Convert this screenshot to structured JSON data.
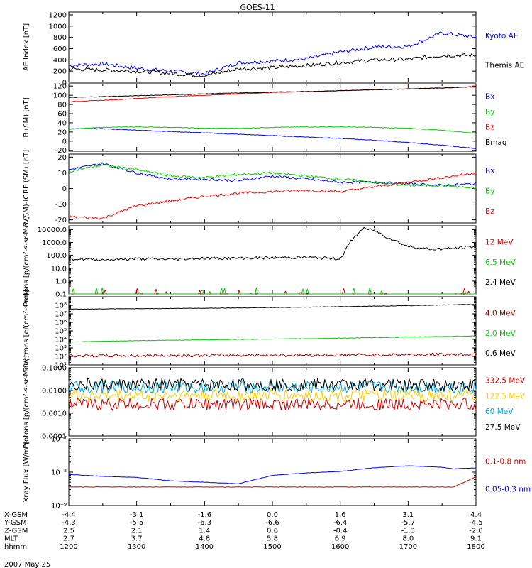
{
  "title": "GOES-11",
  "date_label": "2007 May 25",
  "ephemeris": {
    "rows": [
      {
        "label": "X-GSM",
        "values": [
          "-4.4",
          "-3.1",
          "-1.6",
          "0.0",
          "1.6",
          "3.1",
          "4.4"
        ]
      },
      {
        "label": "Y-GSM",
        "values": [
          "-4.3",
          "-5.5",
          "-6.3",
          "-6.6",
          "-6.4",
          "-5.7",
          "-4.5"
        ]
      },
      {
        "label": "Z-GSM",
        "values": [
          "2.5",
          "2.1",
          "1.4",
          "0.6",
          "-0.4",
          "-1.3",
          "-2.0"
        ]
      },
      {
        "label": "MLT",
        "values": [
          "2.7",
          "3.7",
          "4.8",
          "5.8",
          "6.9",
          "8.0",
          "9.1"
        ]
      },
      {
        "label": "hhmm",
        "values": [
          "1200",
          "1300",
          "1400",
          "1500",
          "1600",
          "1700",
          "1800"
        ]
      }
    ]
  },
  "chart_data": [
    {
      "type": "line",
      "ylabel": "AE Index [nT]",
      "ylim": [
        0,
        1250
      ],
      "scale": "linear",
      "yticks": [
        0,
        200,
        400,
        600,
        800,
        1000,
        1200
      ],
      "x": [
        1200,
        1230,
        1300,
        1330,
        1400,
        1430,
        1500,
        1530,
        1600,
        1630,
        1700,
        1730,
        1800
      ],
      "series": [
        {
          "name": "Kyoto AE",
          "color": "#0000ff",
          "values": [
            300,
            330,
            250,
            200,
            150,
            350,
            380,
            420,
            540,
            630,
            640,
            880,
            800
          ]
        },
        {
          "name": "Themis AE",
          "color": "#000000",
          "values": [
            240,
            220,
            200,
            160,
            120,
            240,
            260,
            300,
            350,
            400,
            410,
            480,
            480
          ]
        }
      ]
    },
    {
      "type": "line",
      "ylabel": "B (SM) [nT]",
      "ylim": [
        -22,
        125
      ],
      "scale": "linear",
      "yticks": [
        -20,
        0,
        20,
        40,
        60,
        80,
        100,
        120
      ],
      "x": [
        1200,
        1230,
        1300,
        1330,
        1400,
        1430,
        1500,
        1530,
        1600,
        1630,
        1700,
        1730,
        1800
      ],
      "series": [
        {
          "name": "Bx",
          "color": "#0000ff",
          "values": [
            27,
            27,
            24,
            21,
            18,
            15,
            12,
            9,
            6,
            2,
            -3,
            -9,
            -16
          ]
        },
        {
          "name": "By",
          "color": "#00cc00",
          "values": [
            26,
            30,
            31,
            30,
            28,
            28,
            30,
            31,
            31,
            30,
            28,
            24,
            17
          ]
        },
        {
          "name": "Bz",
          "color": "#ff0000",
          "values": [
            86,
            89,
            93,
            97,
            100,
            103,
            106,
            108,
            110,
            112,
            114,
            116,
            118
          ]
        },
        {
          "name": "Bmag",
          "color": "#000000",
          "values": [
            95,
            97,
            99,
            101,
            103,
            105,
            107,
            108,
            110,
            112,
            114,
            116,
            119
          ]
        }
      ]
    },
    {
      "type": "line",
      "ylabel": "B (SM)-IGRF (SM) [nT]",
      "ylim": [
        -22,
        22
      ],
      "scale": "linear",
      "yticks": [
        -20,
        -10,
        0,
        10,
        20
      ],
      "x": [
        1200,
        1230,
        1300,
        1330,
        1400,
        1430,
        1500,
        1530,
        1600,
        1630,
        1700,
        1730,
        1800
      ],
      "series": [
        {
          "name": "Bx",
          "color": "#0000ff",
          "values": [
            12,
            16,
            10,
            6,
            6,
            5,
            8,
            6,
            4,
            4,
            3,
            2,
            3
          ]
        },
        {
          "name": "By",
          "color": "#00cc00",
          "values": [
            11,
            15,
            12,
            8,
            7,
            9,
            10,
            8,
            6,
            4,
            2,
            2,
            0
          ]
        },
        {
          "name": "Bz",
          "color": "#ff0000",
          "values": [
            -18,
            -19,
            -11,
            -8,
            -5,
            -3,
            -2,
            -1,
            -2,
            1,
            4,
            7,
            10
          ]
        }
      ]
    },
    {
      "type": "line",
      "ylabel": "Protons [p/(cm²-s-sr-MeV)]",
      "ylim": [
        0.1,
        20000
      ],
      "scale": "log",
      "yticks": [
        0.1,
        1,
        10,
        100,
        1000,
        10000
      ],
      "ytick_labels": [
        "0.1",
        "1.0",
        "10.0",
        "100.0",
        "1000.0",
        "10000.0"
      ],
      "x": [
        1200,
        1230,
        1300,
        1330,
        1400,
        1430,
        1500,
        1530,
        1600,
        1610,
        1620,
        1630,
        1640,
        1700,
        1720,
        1740,
        1800
      ],
      "series": [
        {
          "name": "12 MeV",
          "color": "#cc0000",
          "values": [
            0.1,
            0.1,
            0.1,
            0.1,
            0.1,
            0.1,
            0.1,
            0.1,
            0.1,
            0.1,
            0.1,
            0.1,
            0.1,
            0.1,
            0.1,
            0.1,
            0.1
          ]
        },
        {
          "name": "6.5 MeV",
          "color": "#00cc00",
          "values": [
            0.1,
            0.1,
            0.1,
            0.1,
            0.1,
            0.1,
            0.1,
            0.1,
            0.1,
            0.1,
            0.1,
            0.1,
            0.1,
            0.1,
            0.1,
            0.1,
            0.1
          ]
        },
        {
          "name": "2.4 MeV",
          "color": "#000000",
          "values": [
            55,
            45,
            55,
            50,
            60,
            60,
            65,
            70,
            55,
            1500,
            12000,
            9000,
            3000,
            500,
            300,
            350,
            500
          ]
        }
      ]
    },
    {
      "type": "line",
      "ylabel": "Electrons [e/(cm²-s-sr)]",
      "ylim": [
        10,
        1000000000
      ],
      "scale": "log",
      "yticks": [
        10,
        100,
        1000,
        10000,
        100000,
        1000000,
        10000000,
        100000000
      ],
      "ytick_labels": [
        "10¹",
        "10²",
        "10³",
        "10⁴",
        "10⁵",
        "10⁶",
        "10⁷",
        "10⁸"
      ],
      "x": [
        1200,
        1230,
        1300,
        1330,
        1400,
        1430,
        1500,
        1530,
        1600,
        1630,
        1700,
        1730,
        1800
      ],
      "series": [
        {
          "name": "4.0 MeV",
          "color": "#990000",
          "values": [
            120,
            120,
            120,
            130,
            130,
            140,
            140,
            140,
            150,
            150,
            160,
            170,
            180
          ]
        },
        {
          "name": "2.0 MeV",
          "color": "#00cc00",
          "values": [
            5000,
            6000,
            7000,
            8000,
            9000,
            10000,
            11000,
            12000,
            14000,
            16000,
            19000,
            22000,
            25000
          ]
        },
        {
          "name": "0.6 MeV",
          "color": "#000000",
          "values": [
            35000000,
            37000000,
            40000000,
            43000000,
            46000000,
            50000000,
            55000000,
            60000000,
            70000000,
            80000000,
            90000000,
            110000000,
            130000000
          ]
        }
      ]
    },
    {
      "type": "line",
      "ylabel": "Protons [p/(cm²-s-sr-MeV)]",
      "ylim": [
        0.0001,
        0.1
      ],
      "scale": "log",
      "yticks": [
        0.0001,
        0.001,
        0.01,
        0.1
      ],
      "ytick_labels": [
        "0.0001",
        "0.0010",
        "0.0100",
        "0.1000"
      ],
      "x": [
        1200,
        1230,
        1300,
        1330,
        1400,
        1430,
        1500,
        1530,
        1600,
        1630,
        1700,
        1730,
        1800
      ],
      "series": [
        {
          "name": "332.5 MeV",
          "color": "#cc0000",
          "values": [
            0.0025,
            0.0025,
            0.0025,
            0.0025,
            0.0025,
            0.0025,
            0.0025,
            0.0025,
            0.0025,
            0.0025,
            0.0025,
            0.0025,
            0.0025
          ]
        },
        {
          "name": "122.5 MeV",
          "color": "#ffcc00",
          "values": [
            0.006,
            0.006,
            0.006,
            0.006,
            0.006,
            0.006,
            0.006,
            0.006,
            0.006,
            0.006,
            0.006,
            0.006,
            0.006
          ]
        },
        {
          "name": "60 MeV",
          "color": "#00aadd",
          "values": [
            0.014,
            0.014,
            0.014,
            0.014,
            0.014,
            0.014,
            0.014,
            0.014,
            0.014,
            0.014,
            0.014,
            0.014,
            0.014
          ]
        },
        {
          "name": "27.5 MeV",
          "color": "#000000",
          "values": [
            0.018,
            0.018,
            0.018,
            0.018,
            0.018,
            0.018,
            0.018,
            0.018,
            0.018,
            0.018,
            0.018,
            0.018,
            0.018
          ]
        }
      ]
    },
    {
      "type": "line",
      "ylabel": "Xray Flux [W/m²]",
      "ylim": [
        1e-09,
        1e-07
      ],
      "scale": "log",
      "yticks": [
        1e-09,
        1e-08,
        1e-07
      ],
      "ytick_labels": [
        "10⁻⁹",
        "10⁻⁸",
        "10⁻⁷"
      ],
      "x": [
        1200,
        1230,
        1300,
        1330,
        1400,
        1430,
        1500,
        1530,
        1600,
        1630,
        1700,
        1730,
        1740,
        1800
      ],
      "series": [
        {
          "name": "0.1-0.8 nm",
          "color": "#cc0000",
          "values": [
            3.6e-09,
            3.6e-09,
            3.6e-09,
            3.6e-09,
            3.6e-09,
            3.6e-09,
            3.6e-09,
            3.6e-09,
            3.6e-09,
            3.6e-09,
            3.6e-09,
            3.6e-09,
            3.6e-09,
            7.2e-09
          ]
        },
        {
          "name": "0.05-0.3 nm",
          "color": "#0000ff",
          "values": [
            8.5e-09,
            7.5e-09,
            7e-09,
            5.5e-09,
            5e-09,
            4.5e-09,
            8e-09,
            9.5e-09,
            1.05e-08,
            1.35e-08,
            1.55e-08,
            1.4e-08,
            1.25e-08,
            1.35e-08
          ]
        }
      ]
    }
  ]
}
